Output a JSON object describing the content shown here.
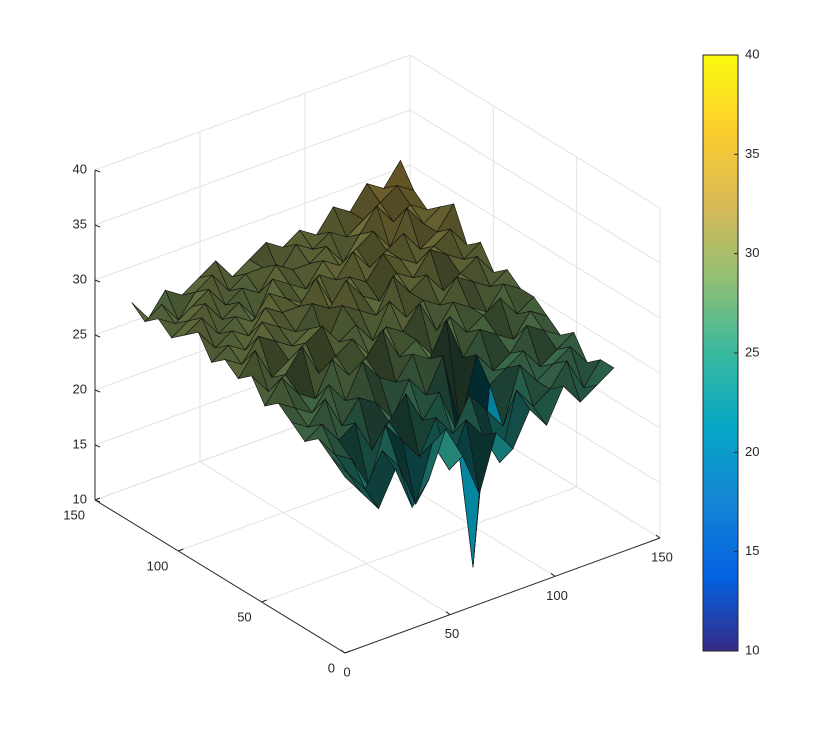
{
  "chart_data": {
    "type": "surface",
    "x": [
      0,
      8,
      16,
      24,
      32,
      40,
      48,
      56,
      64,
      72,
      80,
      88,
      96,
      104,
      112,
      120,
      128
    ],
    "y": [
      0,
      8,
      16,
      24,
      32,
      40,
      48,
      56,
      64,
      72,
      80,
      88,
      96,
      104,
      112,
      120,
      128
    ],
    "z": [
      [
        26,
        24,
        22,
        25,
        21,
        23,
        27,
        24,
        20,
        25,
        23,
        26,
        24,
        27,
        25,
        26,
        27
      ],
      [
        27,
        25,
        23,
        26,
        24,
        20,
        25,
        22,
        26,
        24,
        21,
        27,
        25,
        26,
        28,
        25,
        27
      ],
      [
        28,
        26,
        25,
        22,
        27,
        25,
        23,
        26,
        24,
        27,
        25,
        23,
        28,
        26,
        27,
        28,
        26
      ],
      [
        27,
        28,
        26,
        27,
        24,
        26,
        28,
        25,
        27,
        23,
        10,
        26,
        27,
        28,
        26,
        27,
        28
      ],
      [
        28,
        27,
        29,
        26,
        28,
        27,
        25,
        28,
        26,
        29,
        22,
        28,
        26,
        27,
        29,
        28,
        27
      ],
      [
        29,
        28,
        27,
        29,
        27,
        30,
        28,
        27,
        29,
        28,
        31,
        27,
        29,
        28,
        27,
        29,
        28
      ],
      [
        28,
        30,
        28,
        27,
        30,
        28,
        29,
        31,
        28,
        29,
        27,
        30,
        28,
        29,
        30,
        28,
        29
      ],
      [
        30,
        28,
        29,
        31,
        28,
        29,
        30,
        28,
        30,
        29,
        31,
        28,
        30,
        29,
        28,
        30,
        29
      ],
      [
        29,
        31,
        28,
        29,
        30,
        31,
        29,
        30,
        28,
        31,
        29,
        30,
        29,
        31,
        30,
        29,
        30
      ],
      [
        30,
        29,
        31,
        30,
        29,
        30,
        28,
        31,
        30,
        29,
        32,
        30,
        31,
        29,
        30,
        31,
        29
      ],
      [
        29,
        30,
        29,
        31,
        30,
        29,
        31,
        30,
        32,
        30,
        29,
        31,
        30,
        32,
        31,
        30,
        31
      ],
      [
        31,
        29,
        30,
        29,
        31,
        30,
        30,
        32,
        29,
        31,
        30,
        32,
        31,
        30,
        31,
        32,
        30
      ],
      [
        30,
        31,
        29,
        30,
        29,
        31,
        30,
        29,
        31,
        30,
        32,
        30,
        31,
        32,
        30,
        31,
        33
      ],
      [
        29,
        30,
        31,
        29,
        30,
        28,
        31,
        30,
        29,
        31,
        30,
        31,
        32,
        30,
        33,
        31,
        32
      ],
      [
        30,
        29,
        30,
        31,
        29,
        30,
        29,
        31,
        30,
        30,
        31,
        29,
        31,
        33,
        31,
        32,
        31
      ],
      [
        29,
        30,
        28,
        30,
        31,
        29,
        30,
        30,
        29,
        31,
        30,
        31,
        30,
        31,
        32,
        33,
        32
      ],
      [
        30,
        28,
        30,
        29,
        30,
        31,
        29,
        30,
        31,
        30,
        31,
        30,
        32,
        31,
        33,
        32,
        34
      ]
    ],
    "xlim": [
      0,
      150
    ],
    "ylim": [
      0,
      150
    ],
    "zlim": [
      10,
      40
    ],
    "xticks": [
      0,
      50,
      100,
      150
    ],
    "yticks": [
      0,
      50,
      100,
      150
    ],
    "zticks": [
      10,
      15,
      20,
      25,
      30,
      35,
      40
    ],
    "grid": true,
    "colormap": [
      "#352a87",
      "#0363e1",
      "#1485d4",
      "#06a7c6",
      "#38b99e",
      "#92bf73",
      "#d9ba56",
      "#fcce2e",
      "#f9fb0e"
    ],
    "colorbar": {
      "clim": [
        10,
        40
      ],
      "ticks": [
        10,
        15,
        20,
        25,
        30,
        35,
        40
      ]
    }
  }
}
